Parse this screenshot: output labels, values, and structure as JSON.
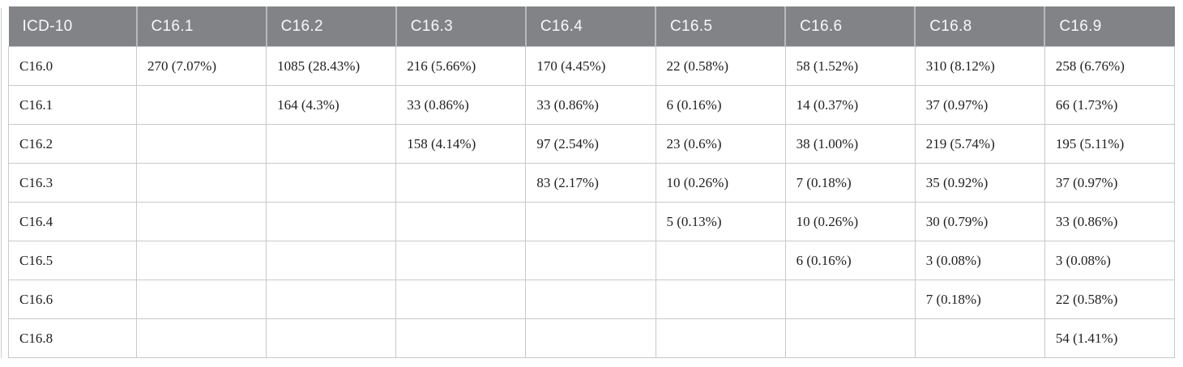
{
  "colors": {
    "header_bg": "#818387",
    "header_text": "#f8f8f8",
    "body_text": "#202020",
    "grid_border": "#c8c9cb"
  },
  "table": {
    "columns": [
      "ICD-10",
      "C16.1",
      "C16.2",
      "C16.3",
      "C16.4",
      "C16.5",
      "C16.6",
      "C16.8",
      "C16.9"
    ],
    "rows": [
      {
        "label": "C16.0",
        "cells": [
          "270 (7.07%)",
          "1085 (28.43%)",
          "216 (5.66%)",
          "170 (4.45%)",
          "22 (0.58%)",
          "58 (1.52%)",
          "310 (8.12%)",
          "258 (6.76%)"
        ]
      },
      {
        "label": "C16.1",
        "cells": [
          "",
          "164 (4.3%)",
          "33 (0.86%)",
          "33 (0.86%)",
          "6 (0.16%)",
          "14 (0.37%)",
          "37 (0.97%)",
          "66 (1.73%)"
        ]
      },
      {
        "label": "C16.2",
        "cells": [
          "",
          "",
          "158 (4.14%)",
          "97 (2.54%)",
          "23 (0.6%)",
          "38 (1.00%)",
          "219 (5.74%)",
          "195 (5.11%)"
        ]
      },
      {
        "label": "C16.3",
        "cells": [
          "",
          "",
          "",
          "83 (2.17%)",
          "10 (0.26%)",
          "7 (0.18%)",
          "35 (0.92%)",
          "37 (0.97%)"
        ]
      },
      {
        "label": "C16.4",
        "cells": [
          "",
          "",
          "",
          "",
          "5 (0.13%)",
          "10 (0.26%)",
          "30 (0.79%)",
          "33 (0.86%)"
        ]
      },
      {
        "label": "C16.5",
        "cells": [
          "",
          "",
          "",
          "",
          "",
          "6 (0.16%)",
          "3 (0.08%)",
          "3 (0.08%)"
        ]
      },
      {
        "label": "C16.6",
        "cells": [
          "",
          "",
          "",
          "",
          "",
          "",
          "7 (0.18%)",
          "22 (0.58%)"
        ]
      },
      {
        "label": "C16.8",
        "cells": [
          "",
          "",
          "",
          "",
          "",
          "",
          "",
          "54 (1.41%)"
        ]
      }
    ]
  }
}
